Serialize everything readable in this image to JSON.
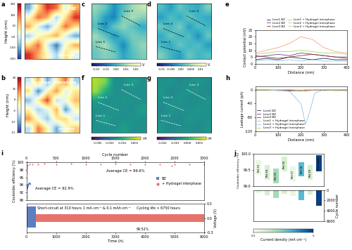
{
  "chart_data": [
    {
      "type": "heatmap",
      "title": "a",
      "annotations": [
        "BZ"
      ],
      "tick_labels": false,
      "cells": [
        [
          -150,
          50,
          200,
          150,
          -50,
          100
        ],
        [
          0,
          150,
          100,
          -100,
          50,
          200
        ],
        [
          100,
          -50,
          -150,
          0,
          150,
          50
        ],
        [
          -100,
          0,
          50,
          100,
          -50,
          -150
        ],
        [
          50,
          150,
          -50,
          -200,
          0,
          100
        ],
        [
          200,
          100,
          0,
          -100,
          50,
          -50
        ]
      ],
      "colorbar": {
        "label": "Height (nm)",
        "range": [
          -250,
          250
        ],
        "ticks": [
          250,
          150,
          50,
          -50,
          -150,
          -250
        ]
      }
    },
    {
      "type": "heatmap",
      "title": "c",
      "annotations": [
        "Line 1",
        "Line 2",
        "Line 3"
      ],
      "tick_labels": false,
      "cells": [
        [
          0.008,
          0.004,
          -0.006,
          0.002,
          0.009,
          0.012
        ],
        [
          0.005,
          -0.004,
          -0.008,
          0.006,
          0.01,
          0.007
        ],
        [
          0.002,
          -0.006,
          0.004,
          0.008,
          0.003,
          -0.002
        ],
        [
          0.009,
          0.003,
          -0.005,
          0.001,
          0.006,
          0.004
        ],
        [
          0.006,
          0.01,
          0.002,
          -0.007,
          0.004,
          0.008
        ],
        [
          0.004,
          0.007,
          0.005,
          -0.003,
          0.002,
          0.006
        ]
      ],
      "colorbar": {
        "label": "V",
        "range": [
          -0.025,
          0.025
        ],
        "ticks": [
          -0.02,
          -0.01,
          {
            "value": 0,
            "label": "0.00"
          },
          0.01,
          0.02
        ]
      }
    },
    {
      "type": "heatmap",
      "title": "d",
      "annotations": [
        "Line 1",
        "Line 2",
        "Line 3"
      ],
      "tick_labels": false,
      "cells": [
        [
          0.001,
          -0.002,
          0.002,
          0.0,
          -0.001,
          0.003
        ],
        [
          -0.002,
          0.001,
          -0.001,
          0.002,
          0.0,
          -0.001
        ],
        [
          0.002,
          0.0,
          0.003,
          -0.002,
          0.001,
          0.0
        ],
        [
          -0.001,
          0.002,
          0.0,
          0.001,
          -0.003,
          0.002
        ],
        [
          0.0,
          -0.001,
          0.002,
          0.0,
          0.001,
          -0.002
        ],
        [
          0.003,
          0.0,
          -0.002,
          0.002,
          0.0,
          0.001
        ]
      ],
      "colorbar": {
        "label": "V",
        "range": [
          -0.0125,
          0.0125
        ],
        "ticks": [
          -0.01,
          -0.005,
          {
            "value": 0,
            "label": "0.00"
          },
          0.005,
          0.01
        ]
      }
    },
    {
      "type": "line",
      "title": "e",
      "xlabel": "Distance (nm)",
      "ylabel": "Contact potential (mV)",
      "x": [
        0,
        50,
        100,
        150,
        200,
        250,
        300,
        350,
        400
      ],
      "xlim": [
        0,
        400
      ],
      "xticks": [
        0,
        100,
        200,
        300,
        400
      ],
      "ylim": [
        0,
        25
      ],
      "yticks": [
        0,
        5,
        10,
        15,
        20,
        25
      ],
      "legend": "top",
      "series": [
        {
          "name": "Line1 BZ",
          "color": "#1f2a5a",
          "values": [
            3,
            4,
            3,
            5,
            4,
            3,
            4,
            3,
            3
          ]
        },
        {
          "name": "Line2 BZ",
          "color": "#6a3d9a",
          "values": [
            5,
            6,
            7,
            6,
            8,
            7,
            6,
            5,
            5
          ]
        },
        {
          "name": "Line3 BZ",
          "color": "#8c3b2b",
          "values": [
            6,
            5,
            4,
            5,
            6,
            7,
            6,
            5,
            4
          ]
        },
        {
          "name": "Line1 + Hydrogel interphase",
          "color": "#f4a582",
          "values": [
            8,
            10,
            12,
            15,
            20,
            18,
            12,
            9,
            8
          ]
        },
        {
          "name": "Line2 + Hydrogel interphase",
          "color": "#92c5de",
          "values": [
            2,
            3,
            2,
            3,
            2,
            3,
            2,
            2,
            2
          ]
        },
        {
          "name": "Line3 + Hydrogel interphase",
          "color": "#a6d96a",
          "values": [
            7,
            8,
            9,
            9,
            10,
            9,
            8,
            8,
            7
          ]
        }
      ]
    },
    {
      "type": "heatmap",
      "title": "b",
      "annotations": [
        "+ Hydrogel interphase"
      ],
      "tick_labels": false,
      "cells": [
        [
          -5,
          10,
          -12,
          3,
          15,
          -8
        ],
        [
          6,
          -15,
          2,
          12,
          -3,
          5
        ],
        [
          -10,
          4,
          18,
          -6,
          0,
          9
        ],
        [
          3,
          -8,
          -2,
          10,
          -14,
          2
        ],
        [
          12,
          0,
          -9,
          5,
          7,
          -5
        ],
        [
          -6,
          14,
          3,
          -12,
          1,
          8
        ]
      ],
      "colorbar": {
        "label": "Height (nm)",
        "range": [
          -21,
          24
        ],
        "ticks": [
          24,
          15,
          6,
          -3,
          -12,
          -21
        ]
      }
    },
    {
      "type": "heatmap",
      "title": "f",
      "annotations": [
        "Line 1",
        "Line 2",
        "Line 3"
      ],
      "tick_labels": false,
      "cells": [
        [
          0.001,
          0.0005,
          -0.002,
          -0.002,
          -0.0015,
          -0.002
        ],
        [
          0.0008,
          -0.001,
          -0.002,
          -0.002,
          -0.002,
          -0.002
        ],
        [
          -0.0015,
          -0.002,
          -0.002,
          -0.0018,
          -0.002,
          -0.002
        ],
        [
          -0.002,
          -0.002,
          -0.0018,
          -0.002,
          -0.002,
          -0.0015
        ],
        [
          -0.002,
          -0.0015,
          -0.002,
          -0.002,
          -0.0018,
          -0.002
        ],
        [
          -0.002,
          -0.002,
          -0.002,
          -0.0015,
          -0.002,
          -0.002
        ]
      ],
      "colorbar": {
        "label": "nA",
        "range": [
          -0.006,
          0.002
        ],
        "ticks": [
          -0.005,
          -0.003,
          -0.001,
          0.001
        ]
      }
    },
    {
      "type": "heatmap",
      "title": "g",
      "annotations": [
        "Line 1",
        "Line 2",
        "Line 3"
      ],
      "tick_labels": false,
      "cells": [
        [
          -0.0005,
          -0.0004,
          -0.0006,
          -0.0005,
          -0.0004,
          -0.0005
        ],
        [
          -0.0004,
          -0.0006,
          -0.0005,
          -0.0004,
          -0.0005,
          -0.0006
        ],
        [
          -0.0005,
          -0.0005,
          -0.0004,
          -0.0006,
          -0.0005,
          -0.0004
        ],
        [
          -0.0006,
          -0.0004,
          -0.0005,
          -0.0005,
          -0.0004,
          -0.0005
        ],
        [
          -0.0005,
          -0.0005,
          -0.0006,
          -0.0004,
          -0.0005,
          -0.0005
        ],
        [
          -0.0004,
          -0.0006,
          -0.0005,
          -0.0005,
          -0.0006,
          -0.0004
        ]
      ],
      "colorbar": {
        "label": "nA",
        "range": [
          -0.0025,
          0.0015
        ],
        "ticks": [
          -0.002,
          -0.001,
          {
            "value": 0,
            "label": "0.000"
          },
          0.001
        ]
      }
    },
    {
      "type": "line",
      "title": "h",
      "xlabel": "Distance (nm)",
      "ylabel": "Leakage current (pA)",
      "x": [
        0,
        50,
        100,
        150,
        200,
        220,
        240,
        260,
        300,
        350,
        400
      ],
      "xlim": [
        0,
        400
      ],
      "xticks": [
        0,
        100,
        200,
        300,
        400
      ],
      "ylim": [
        -120,
        10
      ],
      "yticks": [
        -120,
        -80,
        -40,
        0
      ],
      "legend": "lower left",
      "series": [
        {
          "name": "Line1 BZ",
          "color": "#1f2a5a",
          "values": [
            -1,
            -2,
            -1,
            -3,
            -2,
            -1,
            -2,
            -1,
            -2,
            -1,
            -1
          ]
        },
        {
          "name": "Line2 BZ",
          "color": "#6a3d9a",
          "values": [
            -2,
            -1,
            -2,
            -1,
            -3,
            -2,
            -1,
            -2,
            -1,
            -2,
            -1
          ]
        },
        {
          "name": "Line3 BZ",
          "color": "#8c3b2b",
          "values": [
            -1,
            -1,
            -2,
            -2,
            -1,
            -3,
            -2,
            -1,
            -1,
            -2,
            -2
          ]
        },
        {
          "name": "Line1 + Hydrogel interphase",
          "color": "#f4a582",
          "values": [
            0,
            0,
            -1,
            0,
            -2,
            -1,
            0,
            -1,
            0,
            0,
            0
          ]
        },
        {
          "name": "Line2 + Hydrogel interphase",
          "color": "#92c5de",
          "values": [
            0,
            0,
            -2,
            -5,
            -40,
            -100,
            -60,
            -10,
            0,
            0,
            0
          ]
        },
        {
          "name": "Line3 + Hydrogel interphase",
          "color": "#a6d96a",
          "values": [
            0,
            -1,
            0,
            0,
            -1,
            0,
            -1,
            0,
            0,
            -1,
            0
          ]
        }
      ]
    },
    {
      "type": "scatter",
      "title": "i",
      "xlabel": "Cycle number",
      "ylabel": "Coulombic efficiency (%)",
      "xlim": [
        0,
        3000
      ],
      "xticks": [
        0,
        500,
        1000,
        1500,
        2000,
        2500,
        3000
      ],
      "ylim": [
        90,
        100
      ],
      "yticks": [
        90,
        92,
        94,
        96,
        98,
        100
      ],
      "legend": "center right",
      "annotations": [
        "Average CE = 92.9%",
        "Average CE = 99.6%"
      ],
      "series": [
        {
          "name": "BZ",
          "color": "#5b7fc0",
          "marker": "square",
          "x": [
            1,
            3,
            5,
            8,
            10,
            15,
            20,
            25,
            30,
            40,
            50,
            60
          ],
          "values": [
            90.5,
            91,
            92,
            92.5,
            93,
            93.2,
            93.5,
            93.8,
            94,
            94.2,
            94.5,
            94.3
          ]
        },
        {
          "name": "+ Hydrogel interphase",
          "color": "#e8736b",
          "marker": "circle",
          "x": [
            1,
            3,
            5,
            10,
            20,
            50,
            100,
            200,
            300,
            500,
            750,
            1000,
            1250,
            1500,
            1750,
            2000,
            2250,
            2450,
            2500,
            2750,
            3000
          ],
          "values": [
            97.5,
            98.3,
            98.8,
            99.1,
            99.3,
            99.5,
            99.6,
            99.6,
            99.7,
            99.6,
            99.7,
            99.6,
            99.6,
            99.7,
            99.6,
            99.6,
            99.6,
            99.2,
            99.6,
            99.6,
            99.6
          ]
        }
      ]
    },
    {
      "type": "area",
      "xlabel": "Time (h)",
      "ylabel": "Voltage (V)",
      "xlim": [
        0,
        6000
      ],
      "xticks": [
        0,
        1000,
        2000,
        3000,
        4000,
        5000,
        6000
      ],
      "ylim": [
        -0.3,
        0.3
      ],
      "yticks": [
        -0.3,
        {
          "value": 0,
          "label": "0.0"
        },
        0.3
      ],
      "annotations": [
        "1 mA cm⁻² & 0.1 mAh cm⁻²",
        "Short-circuit at 310 hours",
        "Cycling life > 6750 hours",
        "99.52%"
      ],
      "series": [
        {
          "name": "+ Hydrogel interphase",
          "color": "#e8736b",
          "x": [
            0,
            6000
          ],
          "low": [
            -0.08,
            -0.08
          ],
          "high": [
            0.08,
            0.08
          ]
        },
        {
          "name": "BZ",
          "color": "#5b7fc0",
          "x": [
            0,
            310
          ],
          "low": [
            -0.2,
            -0.2
          ],
          "high": [
            0.25,
            0.25
          ]
        }
      ]
    },
    {
      "type": "floating_bar",
      "title": "j",
      "ylabel": "Coulombic efficiency (%)",
      "categories": [
        "Ref.33",
        "Ref.34",
        "Ref.35",
        "Ref.36",
        "Ref.37",
        "Ref.38",
        "Ref.39",
        "This work"
      ],
      "low": [
        99.35,
        99.2,
        99.1,
        99.45,
        99.15,
        99.3,
        99.2,
        99.45
      ],
      "high": [
        99.8,
        99.65,
        99.55,
        99.92,
        99.6,
        99.75,
        99.65,
        99.95
      ],
      "ylim": [
        99.0,
        100.0
      ],
      "yticks": [
        99.0,
        99.5,
        100.0
      ],
      "cycle_number": [
        600,
        1000,
        1500,
        800,
        1200,
        2000,
        900,
        3000
      ],
      "y2label": "Cycle number",
      "y2lim": [
        6000,
        0
      ],
      "y2ticks": [
        0,
        2000,
        4000,
        6000
      ],
      "current_density": [
        0.5,
        1,
        2,
        1,
        0.5,
        3,
        1,
        5
      ],
      "colorbar": {
        "label": "Current density (mA cm⁻²)",
        "range": [
          0.1,
          5
        ],
        "ticks": [
          0.1,
          5
        ]
      }
    }
  ]
}
